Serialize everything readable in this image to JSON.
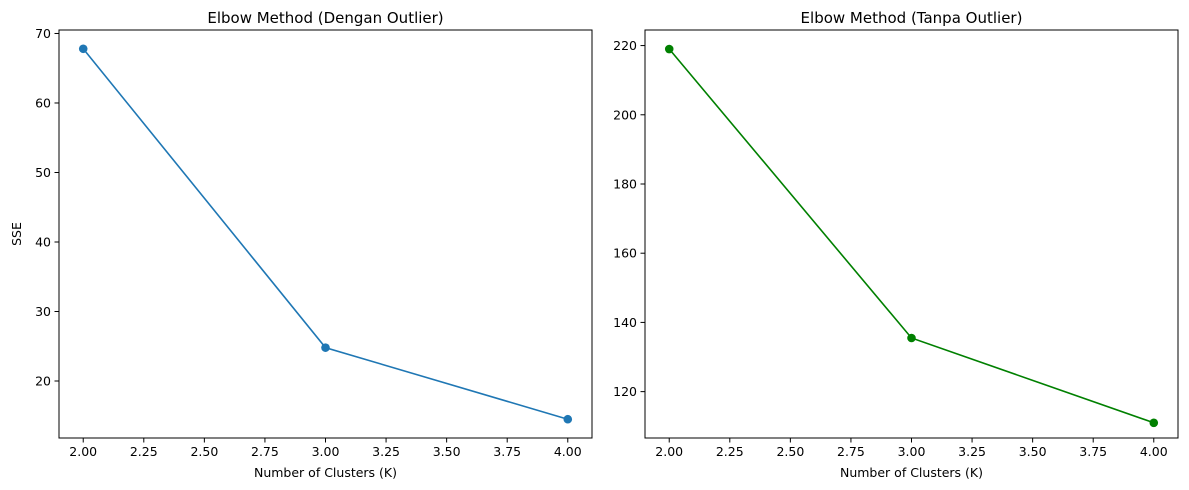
{
  "chart_data": [
    {
      "type": "line",
      "title": "Elbow Method (Dengan Outlier)",
      "xlabel": "Number of Clusters (K)",
      "ylabel": "SSE",
      "x": [
        2,
        3,
        4
      ],
      "series": [
        {
          "values": [
            67.8,
            24.8,
            14.5
          ],
          "color": "#1f77b4",
          "marker": "circle"
        }
      ],
      "xlim": [
        1.9,
        4.1
      ],
      "ylim": [
        11.8,
        70.5
      ],
      "xticks": [
        2.0,
        2.25,
        2.5,
        2.75,
        3.0,
        3.25,
        3.5,
        3.75,
        4.0
      ],
      "xtick_labels": [
        "2.00",
        "2.25",
        "2.50",
        "2.75",
        "3.00",
        "3.25",
        "3.50",
        "3.75",
        "4.00"
      ],
      "yticks": [
        20,
        30,
        40,
        50,
        60,
        70
      ],
      "ytick_labels": [
        "20",
        "30",
        "40",
        "50",
        "60",
        "70"
      ],
      "grid": false
    },
    {
      "type": "line",
      "title": "Elbow Method (Tanpa Outlier)",
      "xlabel": "Number of Clusters (K)",
      "ylabel": "",
      "x": [
        2,
        3,
        4
      ],
      "series": [
        {
          "values": [
            219.0,
            135.5,
            111.0
          ],
          "color": "#008000",
          "marker": "circle"
        }
      ],
      "xlim": [
        1.9,
        4.1
      ],
      "ylim": [
        106.6,
        224.5
      ],
      "xticks": [
        2.0,
        2.25,
        2.5,
        2.75,
        3.0,
        3.25,
        3.5,
        3.75,
        4.0
      ],
      "xtick_labels": [
        "2.00",
        "2.25",
        "2.50",
        "2.75",
        "3.00",
        "3.25",
        "3.50",
        "3.75",
        "4.00"
      ],
      "yticks": [
        120,
        140,
        160,
        180,
        200,
        220
      ],
      "ytick_labels": [
        "120",
        "140",
        "160",
        "180",
        "200",
        "220"
      ],
      "grid": false
    }
  ]
}
